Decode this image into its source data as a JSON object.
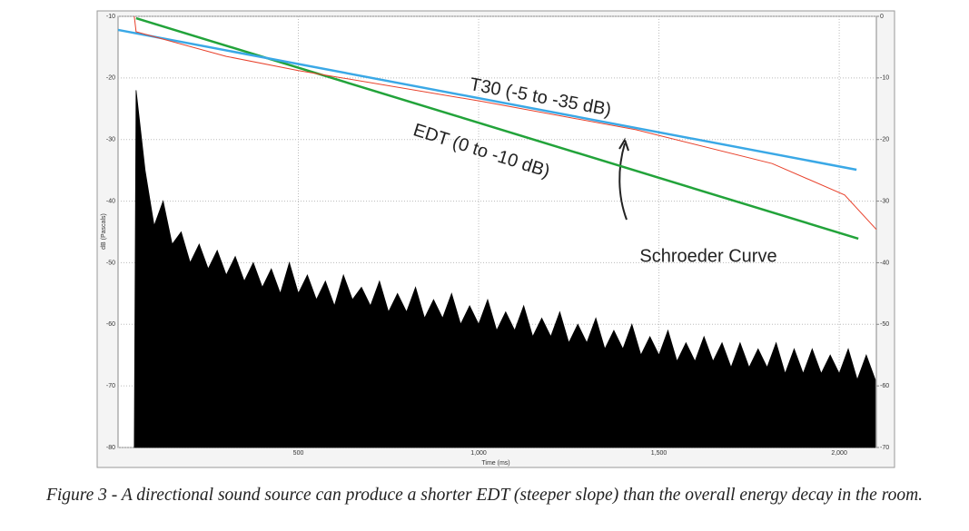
{
  "chart_data": {
    "type": "line",
    "xlabel": "Time (ms)",
    "ylabel": "dB (Pascals)",
    "caption": "Figure 3 - A directional sound source can produce a shorter EDT (steeper slope) than the overall energy decay in the room.",
    "xlim": [
      0,
      2103
    ],
    "xticks": [
      500,
      {
        "value": 1000,
        "label": "1,000"
      },
      {
        "value": 1500,
        "label": "1,500"
      },
      {
        "value": 2000,
        "label": "2,000"
      }
    ],
    "ylim": [
      -80,
      -10
    ],
    "yticks": [
      -10,
      -20,
      -30,
      -40,
      -50,
      -60,
      -70,
      -80
    ],
    "y2lim": [
      -70,
      0
    ],
    "y2ticks": [
      0,
      -10,
      -20,
      -30,
      -40,
      -50,
      -60,
      -70
    ],
    "grid": true,
    "impulse": {
      "color": "#000000",
      "x": [
        45,
        50,
        75,
        100,
        125,
        150,
        175,
        200,
        225,
        250,
        275,
        300,
        325,
        350,
        375,
        400,
        425,
        450,
        475,
        500,
        525,
        550,
        575,
        600,
        625,
        650,
        675,
        700,
        725,
        750,
        775,
        800,
        825,
        850,
        875,
        900,
        925,
        950,
        975,
        1000,
        1025,
        1050,
        1075,
        1100,
        1125,
        1150,
        1175,
        1200,
        1225,
        1250,
        1275,
        1300,
        1325,
        1350,
        1375,
        1400,
        1425,
        1450,
        1475,
        1500,
        1525,
        1550,
        1575,
        1600,
        1625,
        1650,
        1675,
        1700,
        1725,
        1750,
        1775,
        1800,
        1825,
        1850,
        1875,
        1900,
        1925,
        1950,
        1975,
        2000,
        2025,
        2050,
        2075,
        2100
      ],
      "values": [
        -80,
        -22,
        -35,
        -44,
        -40,
        -47,
        -45,
        -50,
        -47,
        -51,
        -48,
        -52,
        -49,
        -53,
        -50,
        -54,
        -51,
        -55,
        -50,
        -55,
        -52,
        -56,
        -53,
        -57,
        -52,
        -56,
        -54,
        -57,
        -53,
        -58,
        -55,
        -58,
        -54,
        -59,
        -56,
        -59,
        -55,
        -60,
        -57,
        -60,
        -56,
        -61,
        -58,
        -61,
        -57,
        -62,
        -59,
        -62,
        -58,
        -63,
        -60,
        -63,
        -59,
        -64,
        -61,
        -64,
        -60,
        -65,
        -62,
        -65,
        -61,
        -66,
        -63,
        -66,
        -62,
        -66,
        -63,
        -67,
        -63,
        -67,
        -64,
        -67,
        -63,
        -68,
        -64,
        -68,
        -64,
        -68,
        -65,
        -68,
        -64,
        -69,
        -65,
        -69
      ]
    },
    "series": [
      {
        "name": "EDT (0 to -10 dB)",
        "color": "#22a33a",
        "x": [
          50,
          2053
        ],
        "values": [
          -10.3,
          -46.1
        ]
      },
      {
        "name": "T30 (-5 to -35 dB)",
        "color": "#3aa8e6",
        "x": [
          0,
          2048
        ],
        "values": [
          -12.2,
          -34.9
        ]
      },
      {
        "name": "Schroeder Curve",
        "color": "#e8402a",
        "x": [
          45,
          50,
          300,
          500,
          1008,
          1436,
          1814,
          2015,
          2103
        ],
        "values": [
          -10,
          -12.5,
          -16.5,
          -18.8,
          -23.8,
          -28.4,
          -33.9,
          -39,
          -44.6
        ]
      }
    ]
  }
}
